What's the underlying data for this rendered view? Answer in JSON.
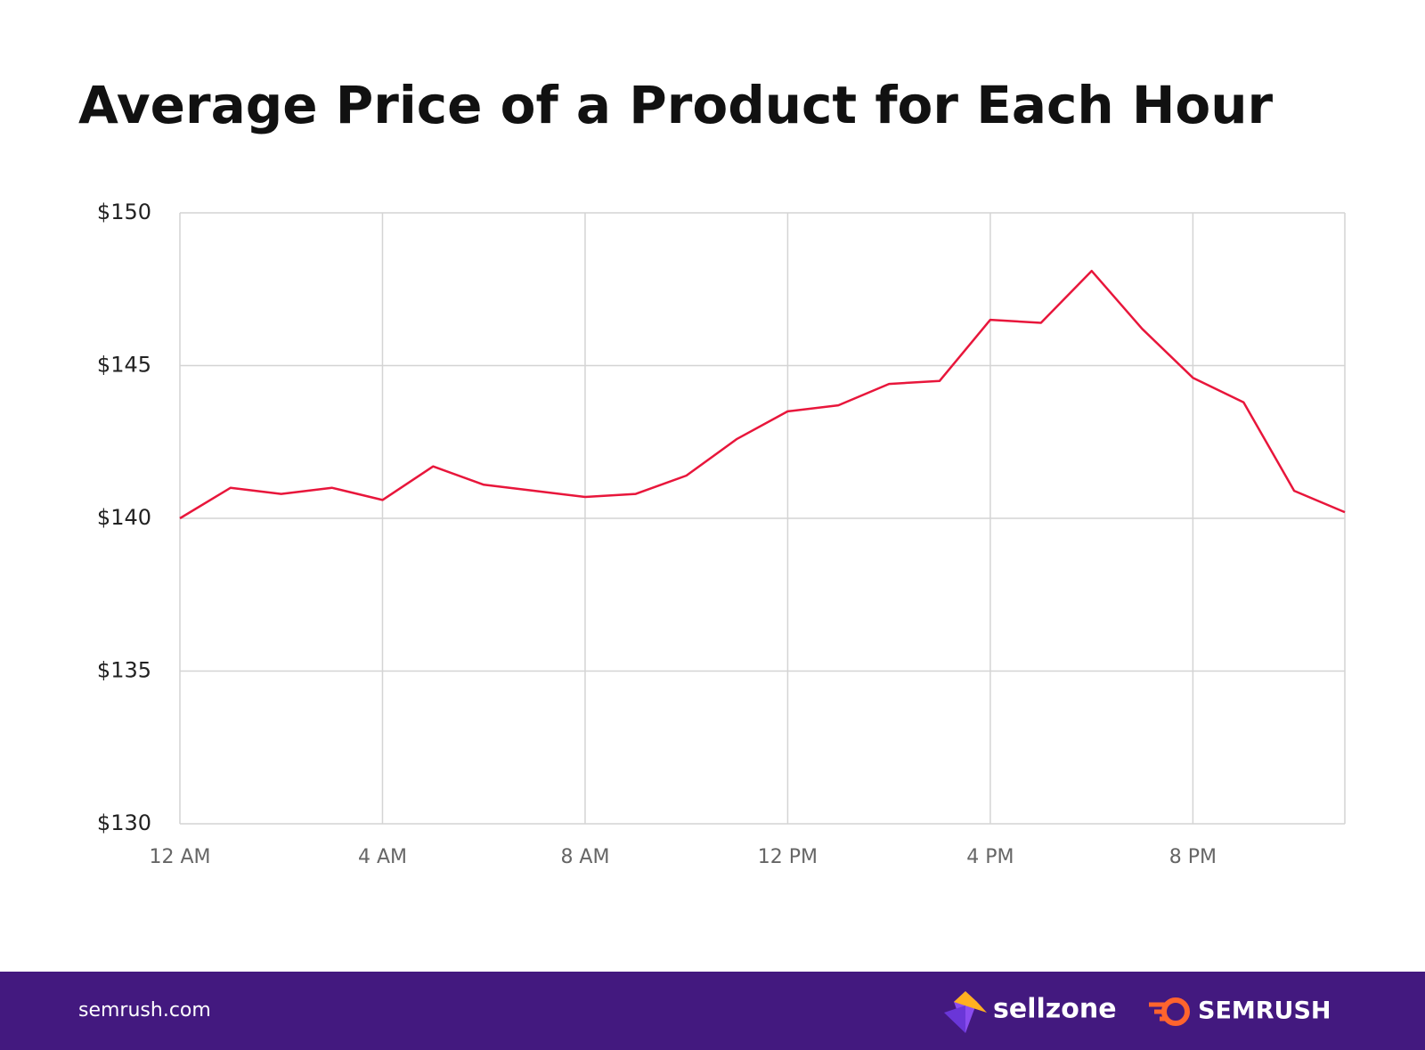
{
  "chart_data": {
    "type": "line",
    "title": "Average Price of a Product for Each Hour",
    "categories": [
      "12 AM",
      null,
      null,
      null,
      "4 AM",
      null,
      null,
      null,
      "8 AM",
      null,
      null,
      null,
      "12 PM",
      null,
      null,
      null,
      "4 PM",
      null,
      null,
      null,
      "8 PM",
      null,
      null,
      null
    ],
    "values": [
      140.0,
      141.0,
      140.8,
      141.0,
      140.6,
      141.7,
      141.1,
      140.9,
      140.7,
      140.8,
      141.4,
      142.6,
      143.5,
      143.7,
      144.4,
      144.5,
      146.5,
      146.4,
      148.1,
      146.2,
      144.6,
      143.8,
      140.9,
      140.2
    ],
    "color": "#e8163b",
    "ylim": [
      130,
      150
    ],
    "yticks": [
      {
        "value": 130,
        "label": "$130"
      },
      {
        "value": 135,
        "label": "$135"
      },
      {
        "value": 140,
        "label": "$140"
      },
      {
        "value": 145,
        "label": "$145"
      },
      {
        "value": 150,
        "label": "$150"
      }
    ],
    "grid": true
  },
  "footer": {
    "site": "semrush.com",
    "logos": [
      "sellzone",
      "SEMRUSH"
    ]
  }
}
